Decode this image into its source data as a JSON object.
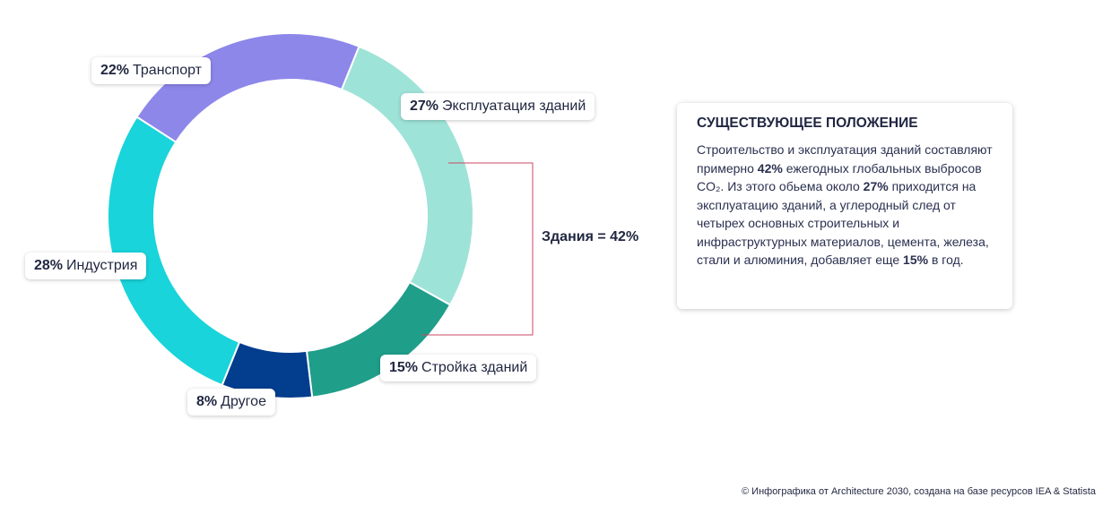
{
  "chart_data": {
    "type": "pie",
    "categories": [
      "Эксплуатация зданий",
      "Стройка зданий",
      "Другое",
      "Индустрия",
      "Транспорт"
    ],
    "values": [
      27,
      15,
      8,
      28,
      22
    ],
    "value_labels": [
      "27%",
      "15%",
      "8%",
      "28%",
      "22%"
    ],
    "colors": [
      "#9ee3d8",
      "#1f9e8a",
      "#033d8e",
      "#19d4da",
      "#8d87ea"
    ]
  },
  "bracket": {
    "label": "Здания = 42%"
  },
  "info": {
    "title": "СУЩЕСТВУЮЩЕЕ ПОЛОЖЕНИЕ",
    "t1": "Строительство и эксплуатация зданий составляют примерно ",
    "b1": "42%",
    "t2": " ежегодных глобальных выбросов CO₂. Из этого обьема около ",
    "b2": "27%",
    "t3": " приходится на эксплуатацию зданий, а углеродный след от четырех основных строительных и инфраструктурных материалов, цемента, железа, стали и алюминия, добавляет еще ",
    "b3": "15%",
    "t4": " в год."
  },
  "credit": "© Инфографика от Architecture 2030, создана на базе ресурсов IEA & Statista"
}
